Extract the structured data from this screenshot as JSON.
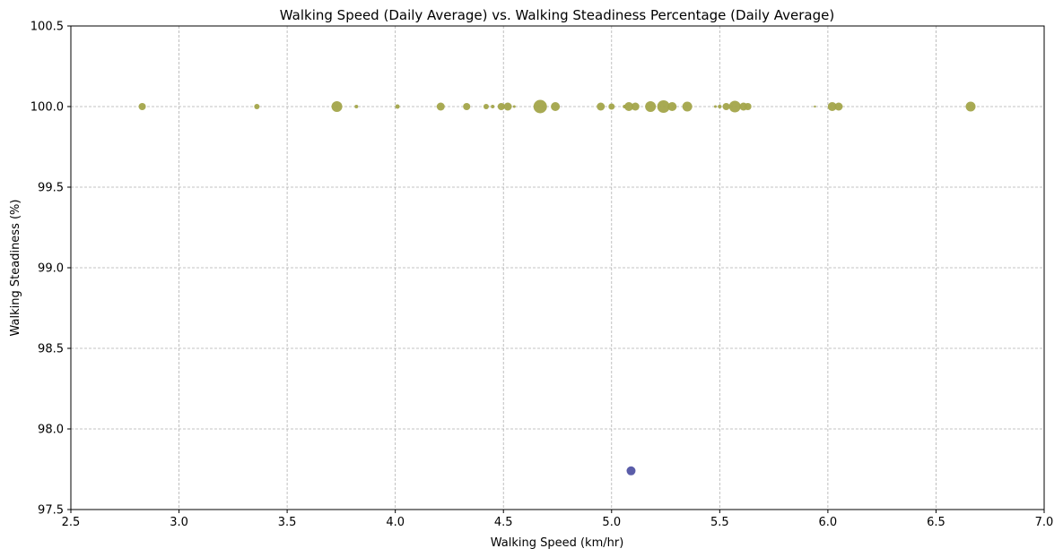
{
  "chart_data": {
    "type": "scatter",
    "title": "Walking Speed (Daily Average) vs. Walking Steadiness Percentage (Daily Average)",
    "xlabel": "Walking Speed (km/hr)",
    "ylabel": "Walking Steadiness (%)",
    "xlim": [
      2.5,
      7.0
    ],
    "ylim": [
      97.5,
      100.5
    ],
    "xticks": [
      2.5,
      3.0,
      3.5,
      4.0,
      4.5,
      5.0,
      5.5,
      6.0,
      6.5,
      7.0
    ],
    "yticks": [
      97.5,
      98.0,
      98.5,
      99.0,
      99.5,
      100.0,
      100.5
    ],
    "xtick_labels": [
      "2.5",
      "3.0",
      "3.5",
      "4.0",
      "4.5",
      "5.0",
      "5.5",
      "6.0",
      "6.5",
      "7.0"
    ],
    "ytick_labels": [
      "97.5",
      "98.0",
      "98.5",
      "99.0",
      "99.5",
      "100.0",
      "100.5"
    ],
    "grid": true,
    "colors": {
      "high": "#a3a54a",
      "low": "#5154a4"
    },
    "points": [
      {
        "x": 2.83,
        "y": 100.0,
        "size": 4,
        "color": "high"
      },
      {
        "x": 3.36,
        "y": 100.0,
        "size": 3,
        "color": "high"
      },
      {
        "x": 3.73,
        "y": 100.0,
        "size": 6,
        "color": "high"
      },
      {
        "x": 3.82,
        "y": 100.0,
        "size": 2,
        "color": "high"
      },
      {
        "x": 4.01,
        "y": 100.0,
        "size": 2.5,
        "color": "high"
      },
      {
        "x": 4.21,
        "y": 100.0,
        "size": 4.5,
        "color": "high"
      },
      {
        "x": 4.33,
        "y": 100.0,
        "size": 4,
        "color": "high"
      },
      {
        "x": 4.42,
        "y": 100.0,
        "size": 3,
        "color": "high"
      },
      {
        "x": 4.45,
        "y": 100.0,
        "size": 2,
        "color": "high"
      },
      {
        "x": 4.49,
        "y": 100.0,
        "size": 4,
        "color": "high"
      },
      {
        "x": 4.52,
        "y": 100.0,
        "size": 4.5,
        "color": "high"
      },
      {
        "x": 4.55,
        "y": 100.0,
        "size": 1.5,
        "color": "high"
      },
      {
        "x": 4.67,
        "y": 100.0,
        "size": 7.5,
        "color": "high"
      },
      {
        "x": 4.74,
        "y": 100.0,
        "size": 5,
        "color": "high"
      },
      {
        "x": 4.95,
        "y": 100.0,
        "size": 4.5,
        "color": "high"
      },
      {
        "x": 5.0,
        "y": 100.0,
        "size": 3.5,
        "color": "high"
      },
      {
        "x": 5.06,
        "y": 100.0,
        "size": 2,
        "color": "high"
      },
      {
        "x": 5.08,
        "y": 100.0,
        "size": 5,
        "color": "high"
      },
      {
        "x": 5.11,
        "y": 100.0,
        "size": 4.5,
        "color": "high"
      },
      {
        "x": 5.18,
        "y": 100.0,
        "size": 6,
        "color": "high"
      },
      {
        "x": 5.24,
        "y": 100.0,
        "size": 7,
        "color": "high"
      },
      {
        "x": 5.28,
        "y": 100.0,
        "size": 5,
        "color": "high"
      },
      {
        "x": 5.35,
        "y": 100.0,
        "size": 5.5,
        "color": "high"
      },
      {
        "x": 5.48,
        "y": 100.0,
        "size": 1.5,
        "color": "high"
      },
      {
        "x": 5.5,
        "y": 100.0,
        "size": 2,
        "color": "high"
      },
      {
        "x": 5.53,
        "y": 100.0,
        "size": 4,
        "color": "high"
      },
      {
        "x": 5.57,
        "y": 100.0,
        "size": 6.5,
        "color": "high"
      },
      {
        "x": 5.61,
        "y": 100.0,
        "size": 4.5,
        "color": "high"
      },
      {
        "x": 5.63,
        "y": 100.0,
        "size": 4,
        "color": "high"
      },
      {
        "x": 5.94,
        "y": 100.0,
        "size": 1.2,
        "color": "high"
      },
      {
        "x": 6.02,
        "y": 100.0,
        "size": 5,
        "color": "high"
      },
      {
        "x": 6.05,
        "y": 100.0,
        "size": 4.5,
        "color": "high"
      },
      {
        "x": 6.66,
        "y": 100.0,
        "size": 5.5,
        "color": "high"
      },
      {
        "x": 5.09,
        "y": 97.74,
        "size": 5,
        "color": "low"
      }
    ]
  }
}
